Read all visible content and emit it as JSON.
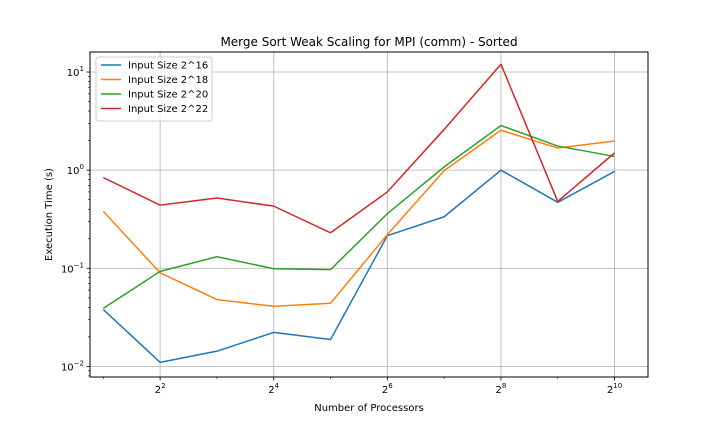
{
  "chart_data": {
    "type": "line",
    "title": "Merge Sort Weak Scaling for MPI (comm) - Sorted",
    "xlabel": "Number of Processors",
    "ylabel": "Execution Time (s)",
    "x_scale": "log2",
    "y_scale": "log10",
    "xlim": [
      1.7,
      1540
    ],
    "ylim": [
      0.0078,
      16
    ],
    "grid": true,
    "legend_position": "upper-left",
    "x": [
      2,
      4,
      8,
      16,
      32,
      64,
      128,
      256,
      512,
      1024
    ],
    "x_ticks": [
      {
        "value": 4,
        "base": "2",
        "exp": "2"
      },
      {
        "value": 16,
        "base": "2",
        "exp": "4"
      },
      {
        "value": 64,
        "base": "2",
        "exp": "6"
      },
      {
        "value": 256,
        "base": "2",
        "exp": "8"
      },
      {
        "value": 1024,
        "base": "2",
        "exp": "10"
      }
    ],
    "y_ticks": [
      {
        "value": 0.01,
        "base": "10",
        "exp": "−2"
      },
      {
        "value": 0.1,
        "base": "10",
        "exp": "−1"
      },
      {
        "value": 1,
        "base": "10",
        "exp": "0"
      },
      {
        "value": 10,
        "base": "10",
        "exp": "1"
      }
    ],
    "series": [
      {
        "name": "Input Size 2^16",
        "color": "#1f77b4",
        "values": [
          0.038,
          0.011,
          0.0143,
          0.0222,
          0.0188,
          0.215,
          0.335,
          1.0,
          0.47,
          0.97
        ]
      },
      {
        "name": "Input Size 2^18",
        "color": "#ff7f0e",
        "values": [
          0.38,
          0.09,
          0.048,
          0.041,
          0.044,
          0.22,
          0.99,
          2.55,
          1.68,
          1.98
        ]
      },
      {
        "name": "Input Size 2^20",
        "color": "#2ca02c",
        "values": [
          0.039,
          0.093,
          0.131,
          0.099,
          0.097,
          0.36,
          1.08,
          2.85,
          1.76,
          1.38
        ]
      },
      {
        "name": "Input Size 2^22",
        "color": "#d62728",
        "values": [
          0.84,
          0.44,
          0.52,
          0.43,
          0.23,
          0.6,
          2.6,
          12.0,
          0.48,
          1.5
        ]
      }
    ]
  }
}
